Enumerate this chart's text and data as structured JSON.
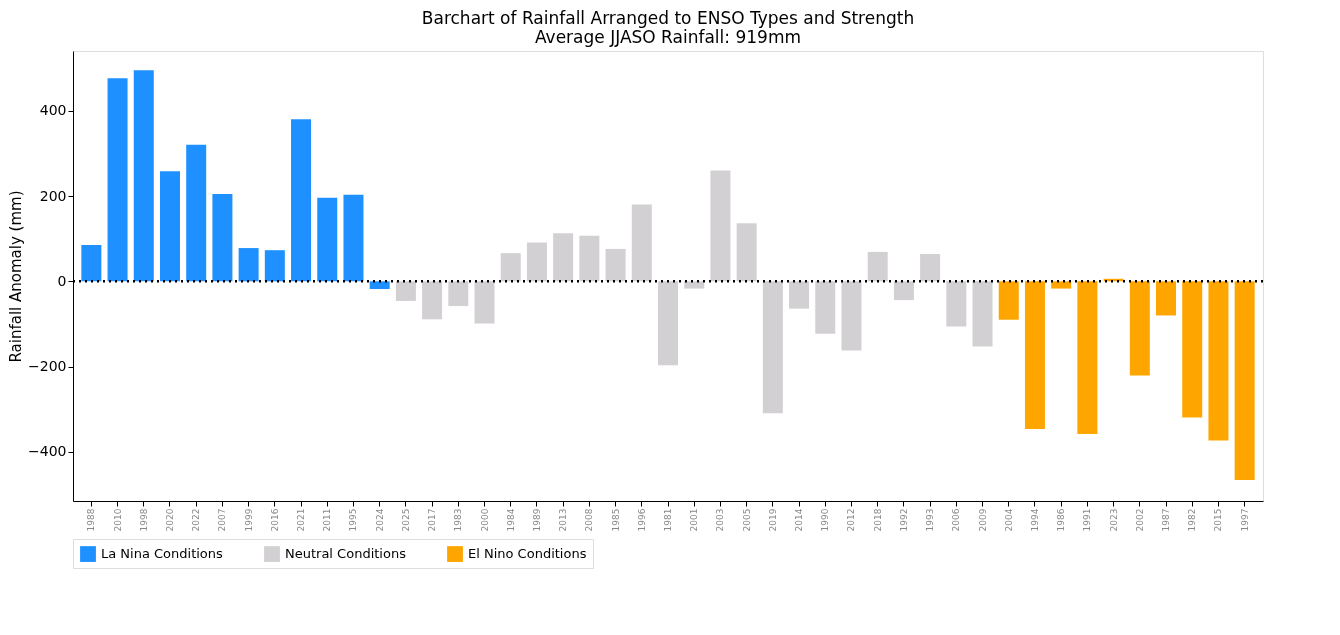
{
  "chart_data": {
    "type": "bar",
    "title": "Barchart of Rainfall Arranged to ENSO Types and Strength",
    "subtitle": "Average JJASO Rainfall: 919mm",
    "ylabel": "Rainfall Anomaly (mm)",
    "categories": [
      "1988",
      "2010",
      "1998",
      "2020",
      "2022",
      "2007",
      "1999",
      "2016",
      "2021",
      "2011",
      "1995",
      "2024",
      "2025",
      "2017",
      "1983",
      "2000",
      "1984",
      "1989",
      "2013",
      "2008",
      "1985",
      "1996",
      "1981",
      "2001",
      "2003",
      "2005",
      "2019",
      "2014",
      "1990",
      "2012",
      "2018",
      "1992",
      "1993",
      "2006",
      "2009",
      "2004",
      "1994",
      "1986",
      "1991",
      "2023",
      "2002",
      "1987",
      "1982",
      "2015",
      "1997"
    ],
    "series": [
      {
        "name": "La Nina Conditions",
        "color": "#1e90ff",
        "values": [
          85,
          476,
          495,
          258,
          320,
          205,
          78,
          73,
          380,
          196,
          203,
          -18,
          null,
          null,
          null,
          null,
          null,
          null,
          null,
          null,
          null,
          null,
          null,
          null,
          null,
          null,
          null,
          null,
          null,
          null,
          null,
          null,
          null,
          null,
          null,
          null,
          null,
          null,
          null,
          null,
          null,
          null,
          null,
          null,
          null
        ]
      },
      {
        "name": "Neutral Conditions",
        "color": "#d3d0d3",
        "values": [
          null,
          null,
          null,
          null,
          null,
          null,
          null,
          null,
          null,
          null,
          null,
          null,
          -46,
          -89,
          -58,
          -99,
          66,
          91,
          113,
          107,
          76,
          180,
          -197,
          -17,
          260,
          136,
          -309,
          -64,
          -123,
          -162,
          69,
          -44,
          64,
          -106,
          -153,
          null,
          null,
          null,
          null,
          null,
          null,
          null,
          null,
          null,
          null
        ]
      },
      {
        "name": "El Nino Conditions",
        "color": "#ffa500",
        "values": [
          null,
          null,
          null,
          null,
          null,
          null,
          null,
          null,
          null,
          null,
          null,
          null,
          null,
          null,
          null,
          null,
          null,
          null,
          null,
          null,
          null,
          null,
          null,
          null,
          null,
          null,
          null,
          null,
          null,
          null,
          null,
          null,
          null,
          null,
          null,
          -90,
          -346,
          -17,
          -358,
          6,
          -221,
          -80,
          -319,
          -373,
          -466
        ]
      }
    ],
    "ylim": [
      -515,
      540
    ],
    "yticks": [
      -400,
      -200,
      0,
      200,
      400
    ],
    "grid": false,
    "legend": "bottom",
    "ref_lines": [
      {
        "axis": "y",
        "value": 0,
        "color": "#000000",
        "line_style": "dotted"
      }
    ]
  }
}
